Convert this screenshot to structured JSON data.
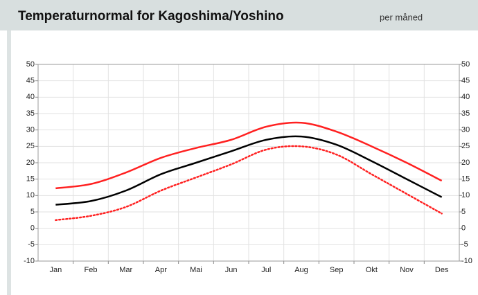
{
  "chart_data": {
    "type": "line",
    "title": "Temperaturnormal for Kagoshima/Yoshino",
    "subtitle": "per måned",
    "categories": [
      "Jan",
      "Feb",
      "Mar",
      "Apr",
      "Mai",
      "Jun",
      "Jul",
      "Aug",
      "Sep",
      "Okt",
      "Nov",
      "Des"
    ],
    "series": [
      {
        "color": "#ff2020",
        "style": "solid",
        "values": [
          12.2,
          13.5,
          17,
          21.5,
          24.5,
          27,
          31,
          32.2,
          29.5,
          25,
          20,
          14.5
        ]
      },
      {
        "color": "#000000",
        "style": "solid",
        "values": [
          7.2,
          8.3,
          11.5,
          16.5,
          20,
          23.5,
          27,
          28,
          25.5,
          20.5,
          15,
          9.5
        ]
      },
      {
        "color": "#ff2020",
        "style": "dotted",
        "values": [
          2.5,
          3.8,
          6.5,
          11.5,
          15.5,
          19.5,
          24,
          25,
          22.5,
          16.5,
          10.5,
          4.5
        ]
      }
    ],
    "ylim": [
      -10,
      50
    ],
    "yticks": [
      -10,
      -5,
      0,
      5,
      10,
      15,
      20,
      25,
      30,
      35,
      40,
      45,
      50
    ],
    "y2lim": [
      -10,
      50
    ],
    "y2ticks": [
      -10,
      -5,
      0,
      5,
      10,
      15,
      20,
      25,
      30,
      35,
      40,
      45,
      50
    ],
    "grid": true
  }
}
